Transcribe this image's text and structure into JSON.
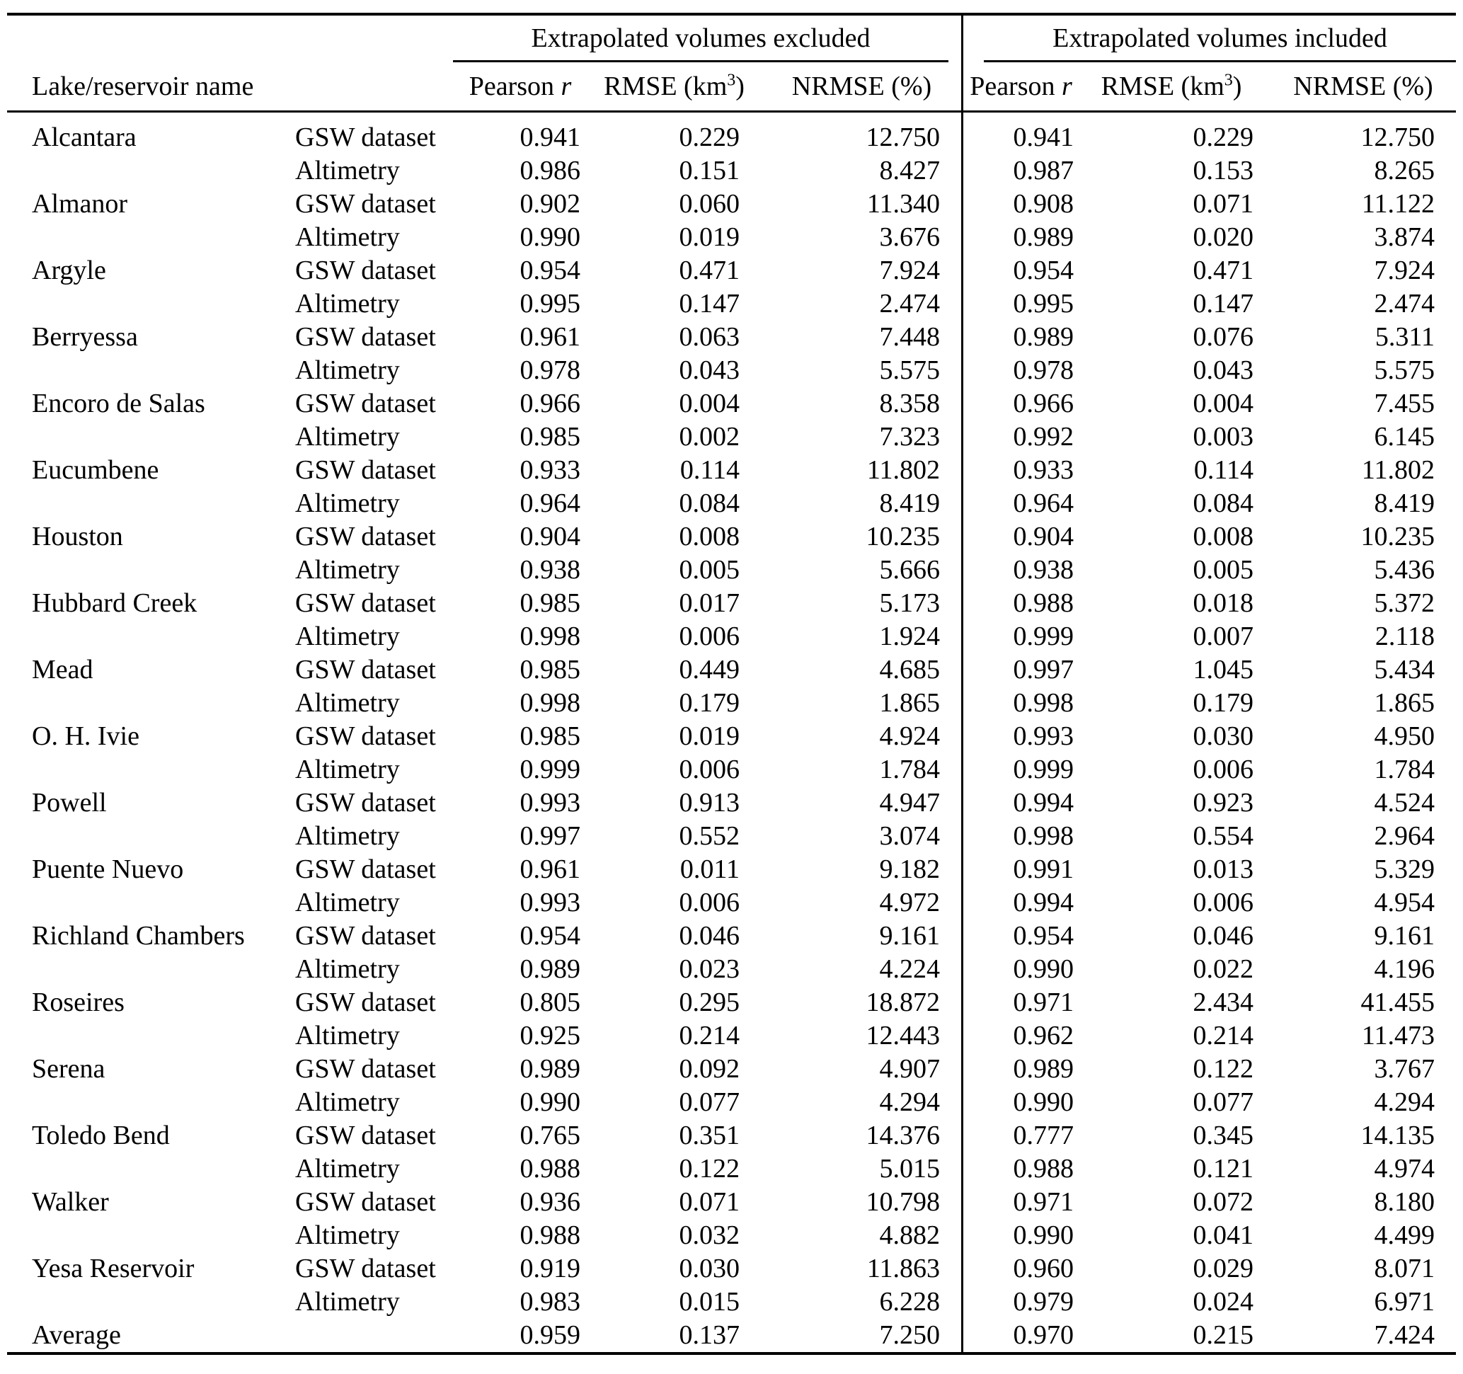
{
  "table": {
    "group_headers": {
      "excluded": "Extrapolated volumes excluded",
      "included": "Extrapolated volumes included"
    },
    "column_headers": {
      "name": "Lake/reservoir name",
      "pearson_word": "Pearson",
      "pearson_symbol": "r",
      "rmse_pre": "RMSE (km",
      "rmse_sup": "3",
      "rmse_post": ")",
      "nrmse": "NRMSE (%)"
    },
    "rows": [
      {
        "name": "Alcantara",
        "dataset": "GSW dataset",
        "values": [
          "0.941",
          "0.229",
          "12.750",
          "0.941",
          "0.229",
          "12.750"
        ]
      },
      {
        "name": "",
        "dataset": "Altimetry",
        "values": [
          "0.986",
          "0.151",
          "8.427",
          "0.987",
          "0.153",
          "8.265"
        ]
      },
      {
        "name": "Almanor",
        "dataset": "GSW dataset",
        "values": [
          "0.902",
          "0.060",
          "11.340",
          "0.908",
          "0.071",
          "11.122"
        ]
      },
      {
        "name": "",
        "dataset": "Altimetry",
        "values": [
          "0.990",
          "0.019",
          "3.676",
          "0.989",
          "0.020",
          "3.874"
        ]
      },
      {
        "name": "Argyle",
        "dataset": "GSW dataset",
        "values": [
          "0.954",
          "0.471",
          "7.924",
          "0.954",
          "0.471",
          "7.924"
        ]
      },
      {
        "name": "",
        "dataset": "Altimetry",
        "values": [
          "0.995",
          "0.147",
          "2.474",
          "0.995",
          "0.147",
          "2.474"
        ]
      },
      {
        "name": "Berryessa",
        "dataset": "GSW dataset",
        "values": [
          "0.961",
          "0.063",
          "7.448",
          "0.989",
          "0.076",
          "5.311"
        ]
      },
      {
        "name": "",
        "dataset": "Altimetry",
        "values": [
          "0.978",
          "0.043",
          "5.575",
          "0.978",
          "0.043",
          "5.575"
        ]
      },
      {
        "name": "Encoro de Salas",
        "dataset": "GSW dataset",
        "values": [
          "0.966",
          "0.004",
          "8.358",
          "0.966",
          "0.004",
          "7.455"
        ]
      },
      {
        "name": "",
        "dataset": "Altimetry",
        "values": [
          "0.985",
          "0.002",
          "7.323",
          "0.992",
          "0.003",
          "6.145"
        ]
      },
      {
        "name": "Eucumbene",
        "dataset": "GSW dataset",
        "values": [
          "0.933",
          "0.114",
          "11.802",
          "0.933",
          "0.114",
          "11.802"
        ]
      },
      {
        "name": "",
        "dataset": "Altimetry",
        "values": [
          "0.964",
          "0.084",
          "8.419",
          "0.964",
          "0.084",
          "8.419"
        ]
      },
      {
        "name": "Houston",
        "dataset": "GSW dataset",
        "values": [
          "0.904",
          "0.008",
          "10.235",
          "0.904",
          "0.008",
          "10.235"
        ]
      },
      {
        "name": "",
        "dataset": "Altimetry",
        "values": [
          "0.938",
          "0.005",
          "5.666",
          "0.938",
          "0.005",
          "5.436"
        ]
      },
      {
        "name": "Hubbard Creek",
        "dataset": "GSW dataset",
        "values": [
          "0.985",
          "0.017",
          "5.173",
          "0.988",
          "0.018",
          "5.372"
        ]
      },
      {
        "name": "",
        "dataset": "Altimetry",
        "values": [
          "0.998",
          "0.006",
          "1.924",
          "0.999",
          "0.007",
          "2.118"
        ]
      },
      {
        "name": "Mead",
        "dataset": "GSW dataset",
        "values": [
          "0.985",
          "0.449",
          "4.685",
          "0.997",
          "1.045",
          "5.434"
        ]
      },
      {
        "name": "",
        "dataset": "Altimetry",
        "values": [
          "0.998",
          "0.179",
          "1.865",
          "0.998",
          "0.179",
          "1.865"
        ]
      },
      {
        "name": "O. H. Ivie",
        "dataset": "GSW dataset",
        "values": [
          "0.985",
          "0.019",
          "4.924",
          "0.993",
          "0.030",
          "4.950"
        ]
      },
      {
        "name": "",
        "dataset": "Altimetry",
        "values": [
          "0.999",
          "0.006",
          "1.784",
          "0.999",
          "0.006",
          "1.784"
        ]
      },
      {
        "name": "Powell",
        "dataset": "GSW dataset",
        "values": [
          "0.993",
          "0.913",
          "4.947",
          "0.994",
          "0.923",
          "4.524"
        ]
      },
      {
        "name": "",
        "dataset": "Altimetry",
        "values": [
          "0.997",
          "0.552",
          "3.074",
          "0.998",
          "0.554",
          "2.964"
        ]
      },
      {
        "name": "Puente Nuevo",
        "dataset": "GSW dataset",
        "values": [
          "0.961",
          "0.011",
          "9.182",
          "0.991",
          "0.013",
          "5.329"
        ]
      },
      {
        "name": "",
        "dataset": "Altimetry",
        "values": [
          "0.993",
          "0.006",
          "4.972",
          "0.994",
          "0.006",
          "4.954"
        ]
      },
      {
        "name": "Richland Chambers",
        "dataset": "GSW dataset",
        "values": [
          "0.954",
          "0.046",
          "9.161",
          "0.954",
          "0.046",
          "9.161"
        ]
      },
      {
        "name": "",
        "dataset": "Altimetry",
        "values": [
          "0.989",
          "0.023",
          "4.224",
          "0.990",
          "0.022",
          "4.196"
        ]
      },
      {
        "name": "Roseires",
        "dataset": "GSW dataset",
        "values": [
          "0.805",
          "0.295",
          "18.872",
          "0.971",
          "2.434",
          "41.455"
        ]
      },
      {
        "name": "",
        "dataset": "Altimetry",
        "values": [
          "0.925",
          "0.214",
          "12.443",
          "0.962",
          "0.214",
          "11.473"
        ]
      },
      {
        "name": "Serena",
        "dataset": "GSW dataset",
        "values": [
          "0.989",
          "0.092",
          "4.907",
          "0.989",
          "0.122",
          "3.767"
        ]
      },
      {
        "name": "",
        "dataset": "Altimetry",
        "values": [
          "0.990",
          "0.077",
          "4.294",
          "0.990",
          "0.077",
          "4.294"
        ]
      },
      {
        "name": "Toledo Bend",
        "dataset": "GSW dataset",
        "values": [
          "0.765",
          "0.351",
          "14.376",
          "0.777",
          "0.345",
          "14.135"
        ]
      },
      {
        "name": "",
        "dataset": "Altimetry",
        "values": [
          "0.988",
          "0.122",
          "5.015",
          "0.988",
          "0.121",
          "4.974"
        ]
      },
      {
        "name": "Walker",
        "dataset": "GSW dataset",
        "values": [
          "0.936",
          "0.071",
          "10.798",
          "0.971",
          "0.072",
          "8.180"
        ]
      },
      {
        "name": "",
        "dataset": "Altimetry",
        "values": [
          "0.988",
          "0.032",
          "4.882",
          "0.990",
          "0.041",
          "4.499"
        ]
      },
      {
        "name": "Yesa Reservoir",
        "dataset": "GSW dataset",
        "values": [
          "0.919",
          "0.030",
          "11.863",
          "0.960",
          "0.029",
          "8.071"
        ]
      },
      {
        "name": "",
        "dataset": "Altimetry",
        "values": [
          "0.983",
          "0.015",
          "6.228",
          "0.979",
          "0.024",
          "6.971"
        ]
      },
      {
        "name": "Average",
        "dataset": "",
        "values": [
          "0.959",
          "0.137",
          "7.250",
          "0.970",
          "0.215",
          "7.424"
        ]
      }
    ]
  }
}
